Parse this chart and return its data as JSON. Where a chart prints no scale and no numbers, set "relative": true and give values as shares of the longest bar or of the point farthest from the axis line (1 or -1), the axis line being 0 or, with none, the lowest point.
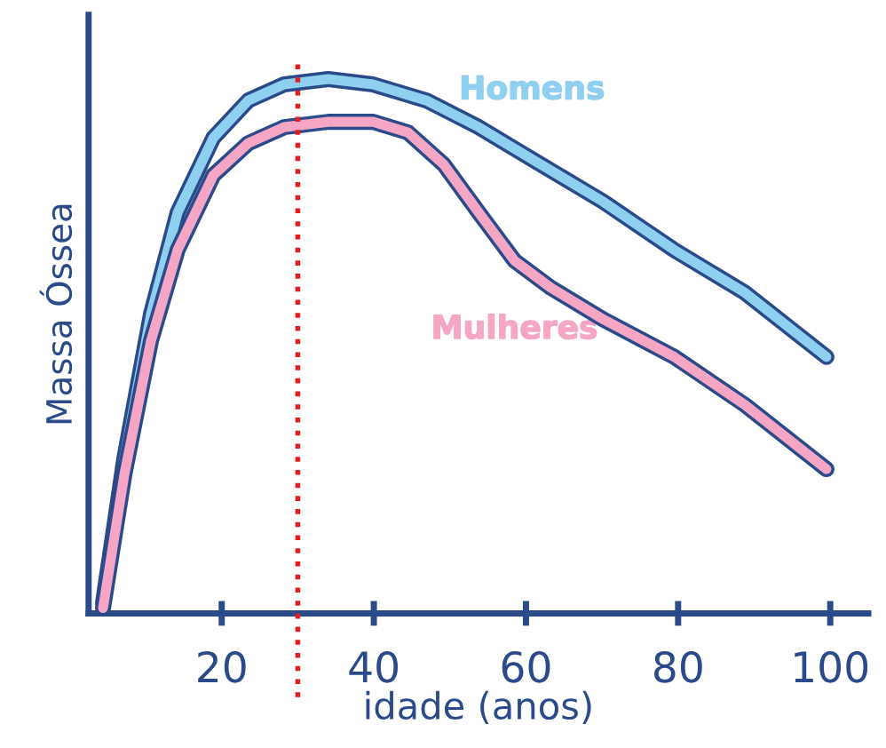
{
  "chart_data": {
    "type": "line",
    "relative": true,
    "xlabel": "idade (anos)",
    "ylabel": "Massa Óssea",
    "xlim": [
      2.5,
      105
    ],
    "xticks": [
      20,
      40,
      60,
      80,
      100
    ],
    "grid": false,
    "legend": false,
    "marker": "none",
    "line_style": "solid",
    "series": [
      {
        "name": "Homens",
        "color": "#8fd0f0",
        "x": [
          4.4,
          7.2,
          10.7,
          14.2,
          18.9,
          23.5,
          28.2,
          34.0,
          39.9,
          46.9,
          53.8,
          60.8,
          70.2,
          79.5,
          88.8,
          99.5
        ],
        "values": [
          0.02,
          0.29,
          0.56,
          0.75,
          0.89,
          0.96,
          0.99,
          1.0,
          0.99,
          0.96,
          0.91,
          0.85,
          0.77,
          0.68,
          0.6,
          0.48
        ]
      },
      {
        "name": "Mulheres",
        "color": "#f4a6c4",
        "x": [
          4.4,
          7.2,
          10.7,
          14.2,
          18.9,
          23.5,
          28.2,
          34.0,
          39.9,
          44.5,
          49.2,
          53.8,
          58.5,
          63.2,
          70.2,
          79.5,
          88.8,
          99.5
        ],
        "values": [
          0.01,
          0.26,
          0.51,
          0.68,
          0.82,
          0.88,
          0.91,
          0.92,
          0.92,
          0.9,
          0.84,
          0.75,
          0.66,
          0.61,
          0.55,
          0.48,
          0.39,
          0.27
        ]
      }
    ],
    "ref_lines": [
      {
        "axis": "x",
        "value": 30,
        "color": "#e02020",
        "line_style": "dotted"
      }
    ]
  }
}
